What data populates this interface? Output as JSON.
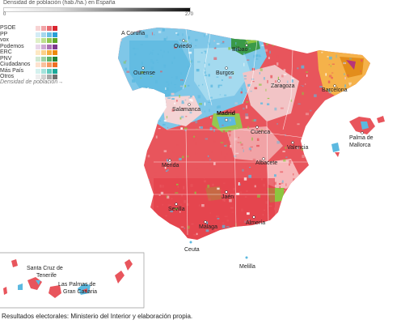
{
  "density_legend": {
    "title": "Densidad de población (hab./ha.) en España",
    "min_label": "0",
    "max_label": "270"
  },
  "party_legend": {
    "parties": [
      {
        "name": "PSOE",
        "colors": [
          "#f7d3d3",
          "#f1a3a6",
          "#ea6a70",
          "#d9252f"
        ]
      },
      {
        "name": "PP",
        "colors": [
          "#d4ecf6",
          "#a6d8ee",
          "#6cc0e4",
          "#2a9fd6"
        ]
      },
      {
        "name": "vox",
        "colors": [
          "#dff0c8",
          "#bde08f",
          "#93c84f",
          "#5da828"
        ]
      },
      {
        "name": "Podemos",
        "colors": [
          "#e8d6ea",
          "#cfa8d4",
          "#ad72b6",
          "#7d3a8e"
        ]
      },
      {
        "name": "ERC",
        "colors": [
          "#fde8c4",
          "#fbd089",
          "#f7ad3f",
          "#ed8a0c"
        ]
      },
      {
        "name": "PNV",
        "colors": [
          "#cfe8d2",
          "#9dd1a4",
          "#5cb36a",
          "#238437"
        ]
      },
      {
        "name": "Ciudadanos",
        "colors": [
          "#fde2cf",
          "#f9c09d",
          "#f59a63",
          "#ee6f25"
        ]
      },
      {
        "name": "Más País",
        "colors": [
          "#d5f1ee",
          "#a5e3dc",
          "#5fcbbf",
          "#1ca99a"
        ]
      },
      {
        "name": "Otros",
        "colors": [
          "#eeeeee",
          "#d2d2d2",
          "#a8a8a8",
          "#707070"
        ]
      }
    ],
    "density_note": "Densidad de población→"
  },
  "cities": {
    "a_coruna": "A Coruña",
    "oviedo": "Oviedo",
    "bilbao": "Bilbao",
    "ourense": "Ourense",
    "burgos": "Burgos",
    "zaragoza": "Zaragoza",
    "barcelona": "Barcelona",
    "salamanca": "Salamanca",
    "madrid": "Madrid",
    "cuenca": "Cuenca",
    "palma": "Palma de",
    "palma2": "Mallorca",
    "valencia": "Valencia",
    "merida": "Mérida",
    "albacete": "Albacete",
    "jaen": "Jaén",
    "sevilla": "Sevilla",
    "almeria": "Almería",
    "malaga": "Málaga",
    "ceuta": "Ceuta",
    "melilla": "Melilla",
    "santa_cruz": "Santa Cruz de",
    "santa_cruz2": "Tenerife",
    "las_palmas": "Las Palmas de",
    "las_palmas2": "Gran Canaria"
  },
  "source": "Resultados electorales: Ministerio del Interior y elaboración propia.",
  "colors": {
    "psoe": "#e8555c",
    "pp": "#5cb9e0",
    "vox": "#8cc63f",
    "erc": "#f5a623",
    "pnv": "#2e8b3e",
    "podemos": "#8e44ad",
    "mixed": "#f2c4c6"
  }
}
